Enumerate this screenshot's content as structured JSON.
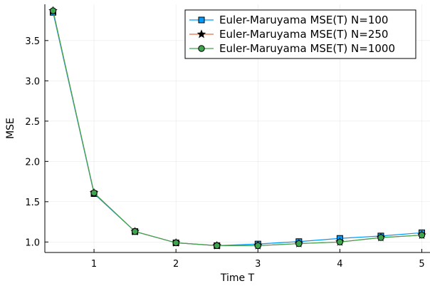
{
  "chart_data": {
    "type": "line",
    "xlabel": "Time T",
    "ylabel": "MSE",
    "xlim": [
      0.4,
      5.1
    ],
    "ylim": [
      0.87,
      3.95
    ],
    "xticks": [
      1,
      2,
      3,
      4,
      5
    ],
    "xtick_labels": [
      "1",
      "2",
      "3",
      "4",
      "5"
    ],
    "yticks": [
      1.0,
      1.5,
      2.0,
      2.5,
      3.0,
      3.5
    ],
    "ytick_labels": [
      "1.0",
      "1.5",
      "2.0",
      "2.5",
      "3.0",
      "3.5"
    ],
    "grid": true,
    "legend_position": "top-right",
    "x": [
      0.5,
      1.0,
      1.5,
      2.0,
      2.5,
      3.0,
      3.5,
      4.0,
      4.5,
      5.0
    ],
    "series": [
      {
        "name": "Euler-Maruyama MSE(T) N=100",
        "color": "#009AFA",
        "marker": "square",
        "values": [
          3.85,
          1.6,
          1.13,
          0.99,
          0.955,
          0.975,
          1.005,
          1.045,
          1.075,
          1.115
        ]
      },
      {
        "name": "Euler-Maruyama MSE(T) N=250",
        "color": "#E26F46",
        "marker": "star",
        "values": [
          3.87,
          1.61,
          1.13,
          0.99,
          0.955,
          0.955,
          0.98,
          1.0,
          1.055,
          1.085
        ]
      },
      {
        "name": "Euler-Maruyama MSE(T) N=1000",
        "color": "#3EA44E",
        "marker": "circle",
        "values": [
          3.87,
          1.61,
          1.13,
          0.99,
          0.955,
          0.955,
          0.98,
          1.0,
          1.055,
          1.085
        ]
      }
    ]
  }
}
